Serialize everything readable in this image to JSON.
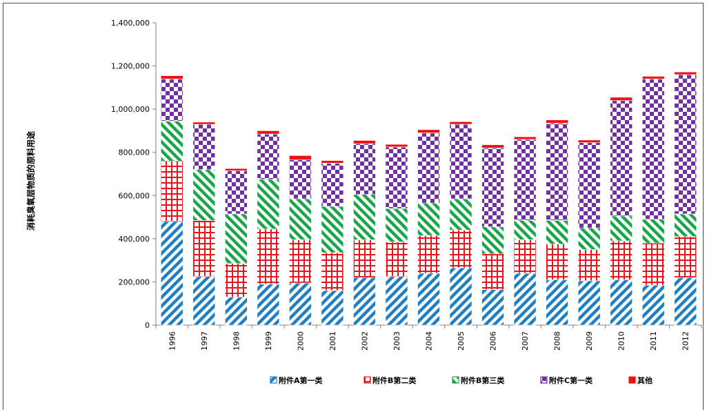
{
  "chart_data": {
    "type": "bar",
    "stacked": true,
    "title": "",
    "xlabel": "",
    "ylabel": "消耗臭氧层物质的原料用途",
    "ylim": [
      0,
      1400000
    ],
    "yticks": [
      0,
      200000,
      400000,
      600000,
      800000,
      1000000,
      1200000,
      1400000
    ],
    "ytick_labels": [
      "0",
      "200,000",
      "400,000",
      "600,000",
      "800,000",
      "1,000,000",
      "1,200,000",
      "1,400,000"
    ],
    "grid": false,
    "legend_position": "bottom",
    "categories": [
      "1996",
      "1997",
      "1998",
      "1999",
      "2000",
      "2001",
      "2002",
      "2003",
      "2004",
      "2005",
      "2006",
      "2007",
      "2008",
      "2009",
      "2010",
      "2011",
      "2012"
    ],
    "series": [
      {
        "name": "附件A第一类",
        "color": "#1f7fc4",
        "pattern": "diagonal",
        "values": [
          480000,
          225000,
          130000,
          190000,
          195000,
          160000,
          220000,
          225000,
          240000,
          265000,
          165000,
          240000,
          210000,
          205000,
          210000,
          185000,
          220000
        ]
      },
      {
        "name": "附件B第二类",
        "color": "#e8141c",
        "pattern": "grid",
        "values": [
          280000,
          260000,
          155000,
          255000,
          200000,
          175000,
          175000,
          160000,
          175000,
          175000,
          165000,
          155000,
          165000,
          145000,
          180000,
          195000,
          190000
        ]
      },
      {
        "name": "附件B第三类",
        "color": "#18a649",
        "pattern": "diagonal-rev",
        "values": [
          185000,
          235000,
          230000,
          230000,
          190000,
          215000,
          210000,
          155000,
          150000,
          145000,
          125000,
          90000,
          110000,
          100000,
          115000,
          110000,
          105000
        ]
      },
      {
        "name": "附件C第一类",
        "color": "#7030a0",
        "pattern": "checker",
        "values": [
          195000,
          210000,
          200000,
          210000,
          180000,
          200000,
          235000,
          285000,
          325000,
          345000,
          365000,
          375000,
          450000,
          395000,
          535000,
          650000,
          645000
        ]
      },
      {
        "name": "其他",
        "color": "#ee1111",
        "pattern": "solid",
        "values": [
          15000,
          10000,
          10000,
          15000,
          20000,
          12000,
          15000,
          12000,
          15000,
          12000,
          15000,
          12000,
          15000,
          12000,
          15000,
          12000,
          12000
        ]
      }
    ]
  }
}
